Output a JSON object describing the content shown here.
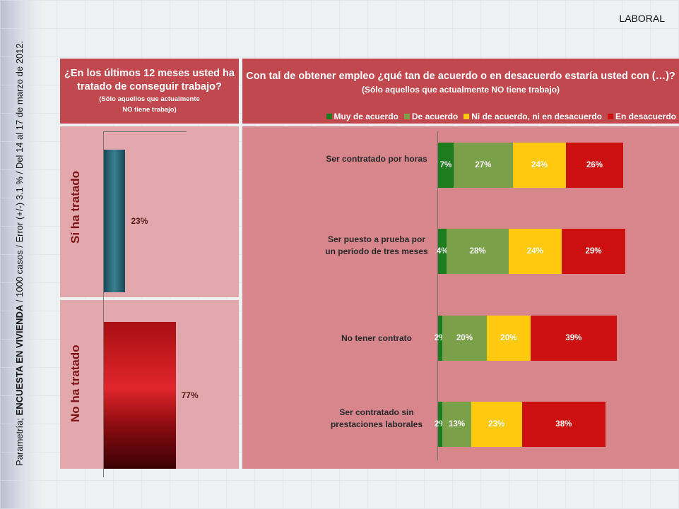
{
  "header": {
    "section": "LABORAL",
    "source_line_prefix": "Parametría; ",
    "source_line_bold": "ENCUESTA EN VIVIENDA",
    "source_line_rest": " / 1000 casos / Error (+/-) 3.1 % / Del 14 al 17 de marzo de 2012."
  },
  "left": {
    "title": "¿En los últimos 12 meses usted ha tratado de conseguir trabajo?",
    "subtitle1": "(Sólo aquellos que actualmente",
    "subtitle2": "NO tiene trabajo)"
  },
  "right": {
    "title": "Con tal de obtener empleo ¿qué tan de acuerdo o en desacuerdo estaría usted con (…)?",
    "subtitle": "(Sólo aquellos que actualmente NO tiene trabajo)"
  },
  "chart_data": [
    {
      "type": "bar",
      "title": "¿En los últimos 12 meses usted ha tratado de conseguir trabajo?",
      "categories": [
        "Sí ha tratado",
        "No ha tratado"
      ],
      "values": [
        23,
        77
      ],
      "labels": [
        "23%",
        "77%"
      ],
      "colors": [
        "#2a6272",
        "#c01a1e"
      ]
    },
    {
      "type": "bar",
      "stacked": true,
      "orientation": "horizontal",
      "title": "Con tal de obtener empleo ¿qué tan de acuerdo o en desacuerdo estaría usted con (…)?",
      "categories": [
        "Ser contratado por horas",
        "Ser puesto a prueba por un periodo de tres meses",
        "No tener contrato",
        "Ser contratado sin prestaciones laborales"
      ],
      "series": [
        {
          "name": "Muy de acuerdo",
          "color": "#1e7b1e",
          "values": [
            7,
            4,
            2,
            2
          ],
          "labels": [
            "7%",
            "4%",
            "2%",
            "2%"
          ]
        },
        {
          "name": "De acuerdo",
          "color": "#7ba04a",
          "values": [
            27,
            28,
            20,
            13
          ],
          "labels": [
            "27%",
            "28%",
            "20%",
            "13%"
          ]
        },
        {
          "name": "Ni de acuerdo, ni en desacuerdo",
          "color": "#ffc90e",
          "values": [
            24,
            24,
            20,
            23
          ],
          "labels": [
            "24%",
            "24%",
            "20%",
            "23%"
          ]
        },
        {
          "name": "En desacuerdo",
          "color": "#cc1010",
          "values": [
            26,
            29,
            39,
            38
          ],
          "labels": [
            "26%",
            "29%",
            "39%",
            "38%"
          ]
        }
      ],
      "legend": "top-right"
    }
  ]
}
